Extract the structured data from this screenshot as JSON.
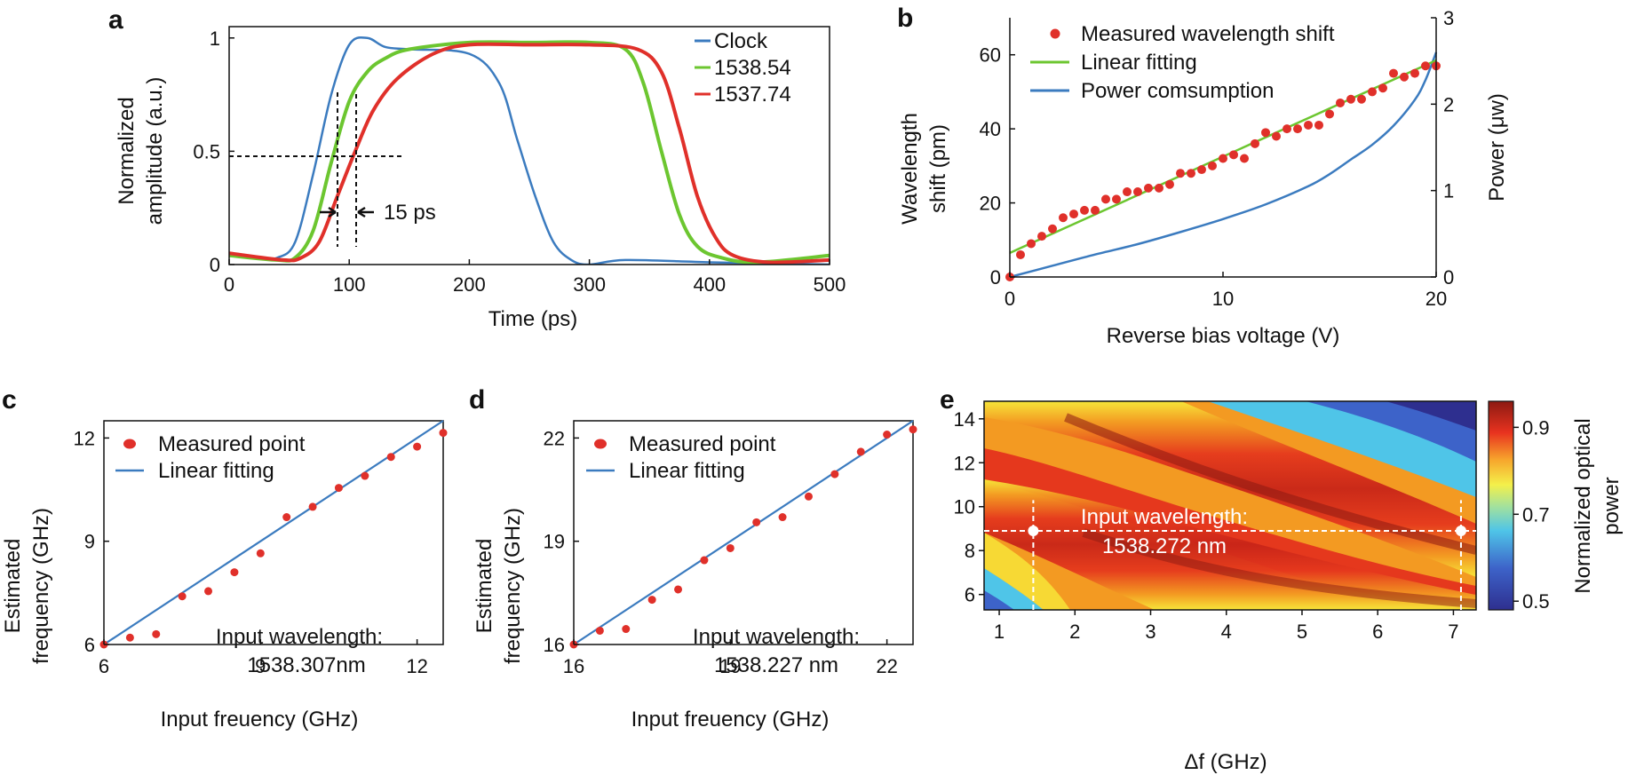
{
  "chart_data": [
    {
      "id": "a",
      "type": "line",
      "panel_label": "a",
      "xlabel": "Time (ps)",
      "ylabel_lines": [
        "Normalized",
        "amplitude (a.u.)"
      ],
      "xlim": [
        0,
        500
      ],
      "ylim": [
        0,
        1.05
      ],
      "xticks": [
        0,
        100,
        200,
        300,
        400,
        500
      ],
      "yticks": [
        0,
        0.5,
        1
      ],
      "legend_position": "top-right",
      "annotation": "15 ps",
      "series": [
        {
          "name": "Clock",
          "color": "#3b7bbf",
          "x": [
            0,
            25,
            40,
            55,
            70,
            85,
            100,
            115,
            130,
            150,
            200,
            225,
            240,
            255,
            270,
            285,
            300,
            330,
            400,
            500
          ],
          "y": [
            0.04,
            0.03,
            0.03,
            0.1,
            0.4,
            0.75,
            0.97,
            1.0,
            0.96,
            0.95,
            0.93,
            0.8,
            0.55,
            0.3,
            0.1,
            0.02,
            0.0,
            0.02,
            0.01,
            0.0
          ]
        },
        {
          "name": "1538.54",
          "color": "#6cc630",
          "x": [
            0,
            40,
            55,
            70,
            85,
            100,
            115,
            130,
            150,
            200,
            250,
            300,
            330,
            345,
            360,
            375,
            390,
            410,
            440,
            500
          ],
          "y": [
            0.04,
            0.02,
            0.03,
            0.15,
            0.45,
            0.72,
            0.85,
            0.91,
            0.95,
            0.98,
            0.98,
            0.98,
            0.95,
            0.8,
            0.5,
            0.22,
            0.08,
            0.03,
            0.01,
            0.04
          ]
        },
        {
          "name": "1537.74",
          "color": "#e0302a",
          "x": [
            0,
            45,
            60,
            75,
            90,
            105,
            120,
            140,
            170,
            200,
            250,
            300,
            340,
            360,
            375,
            390,
            405,
            420,
            450,
            500
          ],
          "y": [
            0.05,
            0.02,
            0.03,
            0.1,
            0.3,
            0.5,
            0.68,
            0.82,
            0.93,
            0.97,
            0.97,
            0.97,
            0.95,
            0.85,
            0.6,
            0.3,
            0.12,
            0.04,
            0.01,
            0.02
          ]
        }
      ]
    },
    {
      "id": "b",
      "type": "scatter",
      "panel_label": "b",
      "xlabel": "Reverse bias voltage (V)",
      "ylabel_lines": [
        "Wavelength",
        "shift (pm)"
      ],
      "y2label": "Power (μw)",
      "xlim": [
        0,
        20
      ],
      "ylim": [
        0,
        70
      ],
      "y2lim": [
        0,
        3
      ],
      "xticks": [
        0,
        10,
        20
      ],
      "yticks": [
        0,
        20,
        40,
        60
      ],
      "y2ticks": [
        0,
        1,
        2,
        3
      ],
      "legend_position": "top-left",
      "series": [
        {
          "name": "Measured wavelength shift",
          "color": "#e0302a",
          "kind": "points",
          "x": [
            0,
            0.5,
            1,
            1.5,
            2,
            2.5,
            3,
            3.5,
            4,
            4.5,
            5,
            5.5,
            6,
            6.5,
            7,
            7.5,
            8,
            8.5,
            9,
            9.5,
            10,
            10.5,
            11,
            11.5,
            12,
            12.5,
            13,
            13.5,
            14,
            14.5,
            15,
            15.5,
            16,
            16.5,
            17,
            17.5,
            18,
            18.5,
            19,
            19.5,
            20
          ],
          "y": [
            0,
            6,
            9,
            11,
            13,
            16,
            17,
            18,
            18,
            21,
            21,
            23,
            23,
            24,
            24,
            25,
            28,
            28,
            29,
            30,
            32,
            33,
            32,
            36,
            39,
            38,
            40,
            40,
            41,
            41,
            44,
            47,
            48,
            48,
            50,
            51,
            55,
            54,
            55,
            57,
            57
          ]
        },
        {
          "name": "Linear fitting",
          "color": "#6cc630",
          "kind": "line",
          "x": [
            0,
            20
          ],
          "y": [
            6.5,
            58.5
          ]
        },
        {
          "name": "Power comsumption",
          "color": "#3b7bbf",
          "kind": "line",
          "axis": "right",
          "x": [
            0,
            2,
            4,
            6,
            8,
            10,
            12,
            14,
            15,
            16,
            17,
            18,
            19,
            19.5,
            20
          ],
          "y": [
            0,
            0.13,
            0.26,
            0.38,
            0.52,
            0.67,
            0.84,
            1.05,
            1.19,
            1.36,
            1.53,
            1.75,
            2.05,
            2.28,
            2.6
          ]
        }
      ]
    },
    {
      "id": "c",
      "type": "scatter",
      "panel_label": "c",
      "xlabel": "Input freuency (GHz)",
      "ylabel_lines": [
        "Estimated",
        "frequency (GHz)"
      ],
      "xlim": [
        6,
        12.5
      ],
      "ylim": [
        6,
        12.5
      ],
      "xticks": [
        6,
        9,
        12
      ],
      "yticks": [
        6,
        9,
        12
      ],
      "legend_position": "top-left",
      "annotation_lines": [
        "Input wavelength:",
        "1538.307nm"
      ],
      "series": [
        {
          "name": "Measured point",
          "color": "#e0302a",
          "kind": "points",
          "x": [
            6,
            6.5,
            7,
            7.5,
            8,
            8.5,
            9,
            9.5,
            10,
            10.5,
            11,
            11.5,
            12,
            12.5
          ],
          "y": [
            6,
            6.2,
            6.3,
            7.4,
            7.55,
            8.1,
            8.65,
            9.7,
            10.0,
            10.55,
            10.9,
            11.45,
            11.75,
            12.15
          ]
        },
        {
          "name": "Linear fitting",
          "color": "#3b7bbf",
          "kind": "line",
          "x": [
            6,
            12.5
          ],
          "y": [
            6,
            12.5
          ]
        }
      ]
    },
    {
      "id": "d",
      "type": "scatter",
      "panel_label": "d",
      "xlabel": "Input freuency (GHz)",
      "ylabel_lines": [
        "Estimated",
        "frequency (GHz)"
      ],
      "xlim": [
        16,
        22.5
      ],
      "ylim": [
        16,
        22.5
      ],
      "xticks": [
        16,
        19,
        22
      ],
      "yticks": [
        16,
        19,
        22
      ],
      "legend_position": "top-left",
      "annotation_lines": [
        "Input wavelength:",
        "1538.227 nm"
      ],
      "series": [
        {
          "name": "Measured point",
          "color": "#e0302a",
          "kind": "points",
          "x": [
            16,
            16.5,
            17,
            17.5,
            18,
            18.5,
            19,
            19.5,
            20,
            20.5,
            21,
            21.5,
            22,
            22.5
          ],
          "y": [
            16,
            16.4,
            16.45,
            17.3,
            17.6,
            18.45,
            18.8,
            19.55,
            19.7,
            20.3,
            20.95,
            21.6,
            22.1,
            22.25
          ]
        },
        {
          "name": "Linear fitting",
          "color": "#3b7bbf",
          "kind": "line",
          "x": [
            16,
            22.5
          ],
          "y": [
            16,
            22.5
          ]
        }
      ]
    },
    {
      "id": "e",
      "type": "heatmap",
      "panel_label": "e",
      "xlabel": "Δf (GHz)",
      "xlim": [
        0.8,
        7.3
      ],
      "ylim": [
        5.3,
        14.8
      ],
      "xticks": [
        1,
        2,
        3,
        4,
        5,
        6,
        7
      ],
      "yticks": [
        6,
        8,
        10,
        12,
        14
      ],
      "colorbar_label_lines": [
        "Normalized optical",
        "power"
      ],
      "colorbar_range": [
        0.48,
        0.96
      ],
      "colorbar_ticks": [
        0.5,
        0.7,
        0.9
      ],
      "annotation_lines": [
        "Input wavelength:",
        "1538.272 nm"
      ],
      "marker_y": 8.9,
      "marker_x": [
        1.45,
        7.1
      ]
    }
  ]
}
